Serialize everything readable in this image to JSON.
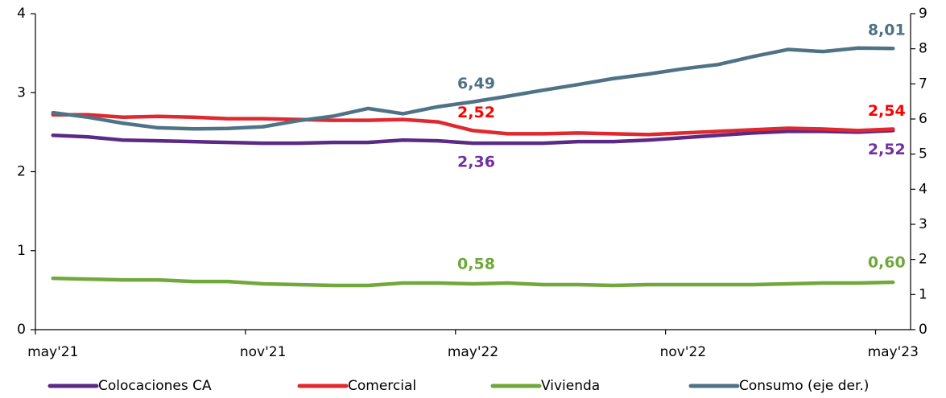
{
  "chart_data": {
    "type": "line",
    "categories": [
      "may'21",
      null,
      null,
      null,
      null,
      null,
      "nov'21",
      null,
      null,
      null,
      null,
      null,
      "may'22",
      null,
      null,
      null,
      null,
      null,
      "nov'22",
      null,
      null,
      null,
      null,
      null,
      "may'23"
    ],
    "series": [
      {
        "name": "Colocaciones CA",
        "color": "#5b2a86",
        "values": [
          2.46,
          2.44,
          2.4,
          2.39,
          2.38,
          2.37,
          2.36,
          2.36,
          2.37,
          2.37,
          2.4,
          2.39,
          2.36,
          2.36,
          2.36,
          2.38,
          2.38,
          2.4,
          2.43,
          2.46,
          2.49,
          2.51,
          2.51,
          2.5,
          2.52
        ],
        "value_labels": [
          null,
          null,
          null,
          null,
          null,
          null,
          null,
          null,
          null,
          null,
          null,
          null,
          "2,36",
          null,
          null,
          null,
          null,
          null,
          null,
          null,
          null,
          null,
          null,
          null,
          "2,52"
        ],
        "label_color": "#7030a0"
      },
      {
        "name": "Comercial",
        "color": "#e0282e",
        "values": [
          2.72,
          2.72,
          2.69,
          2.7,
          2.69,
          2.67,
          2.67,
          2.66,
          2.65,
          2.65,
          2.66,
          2.63,
          2.52,
          2.48,
          2.48,
          2.49,
          2.48,
          2.47,
          2.49,
          2.51,
          2.53,
          2.55,
          2.54,
          2.52,
          2.54
        ],
        "value_labels": [
          null,
          null,
          null,
          null,
          null,
          null,
          null,
          null,
          null,
          null,
          null,
          null,
          "2,52",
          null,
          null,
          null,
          null,
          null,
          null,
          null,
          null,
          null,
          null,
          null,
          "2,54"
        ],
        "label_color": "#ff0000"
      },
      {
        "name": "Vivienda",
        "color": "#70a83b",
        "values": [
          0.65,
          0.64,
          0.63,
          0.63,
          0.61,
          0.61,
          0.58,
          0.57,
          0.56,
          0.56,
          0.59,
          0.59,
          0.58,
          0.59,
          0.57,
          0.57,
          0.56,
          0.57,
          0.57,
          0.57,
          0.57,
          0.58,
          0.59,
          0.59,
          0.6
        ],
        "value_labels": [
          null,
          null,
          null,
          null,
          null,
          null,
          null,
          null,
          null,
          null,
          null,
          null,
          "0,58",
          null,
          null,
          null,
          null,
          null,
          null,
          null,
          null,
          null,
          null,
          null,
          "0,60"
        ],
        "label_color": "#70a83b"
      },
      {
        "name": "Consumo (eje der.)",
        "color": "#4e7387",
        "axis": "y2",
        "values": [
          6.18,
          6.05,
          5.88,
          5.75,
          5.72,
          5.73,
          5.78,
          5.95,
          6.08,
          6.3,
          6.15,
          6.35,
          6.49,
          6.65,
          6.82,
          6.98,
          7.15,
          7.28,
          7.43,
          7.55,
          7.78,
          7.98,
          7.92,
          8.02,
          8.01
        ],
        "value_labels": [
          null,
          null,
          null,
          null,
          null,
          null,
          null,
          null,
          null,
          null,
          null,
          null,
          "6,49",
          null,
          null,
          null,
          null,
          null,
          null,
          null,
          null,
          null,
          null,
          null,
          "8,01"
        ],
        "label_color": "#4e7387"
      }
    ],
    "ylim": [
      0,
      4
    ],
    "yticks": [
      0,
      1,
      2,
      3,
      4
    ],
    "y2lim": [
      0,
      9
    ],
    "y2ticks": [
      0,
      1,
      2,
      3,
      4,
      5,
      6,
      7,
      8,
      9
    ]
  }
}
